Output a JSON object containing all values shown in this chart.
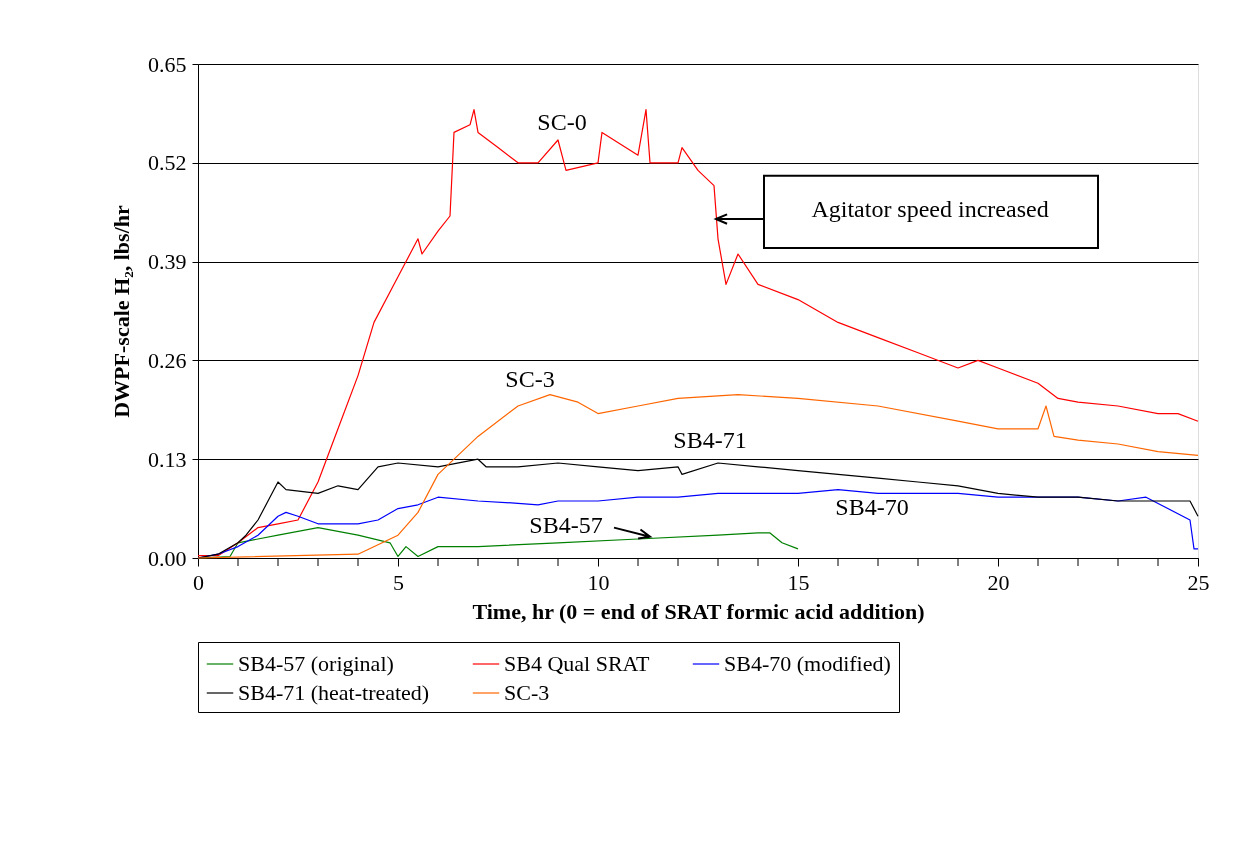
{
  "chart_data": {
    "type": "line",
    "xlabel": "Time, hr (0 = end of SRAT formic acid addition)",
    "ylabel": "DWPF-scale H₂, lbs/hr",
    "xlim": [
      0,
      25
    ],
    "ylim": [
      0,
      0.65
    ],
    "xticks": [
      0,
      {
        "value": 1,
        "label": null
      },
      {
        "value": 2,
        "label": null
      },
      {
        "value": 3,
        "label": null
      },
      {
        "value": 4,
        "label": null
      },
      5,
      {
        "value": 6,
        "label": null
      },
      {
        "value": 7,
        "label": null
      },
      {
        "value": 8,
        "label": null
      },
      {
        "value": 9,
        "label": null
      },
      10,
      {
        "value": 11,
        "label": null
      },
      {
        "value": 12,
        "label": null
      },
      {
        "value": 13,
        "label": null
      },
      {
        "value": 14,
        "label": null
      },
      15,
      {
        "value": 16,
        "label": null
      },
      {
        "value": 17,
        "label": null
      },
      {
        "value": 18,
        "label": null
      },
      {
        "value": 19,
        "label": null
      },
      20,
      {
        "value": 21,
        "label": null
      },
      {
        "value": 22,
        "label": null
      },
      {
        "value": 23,
        "label": null
      },
      {
        "value": 24,
        "label": null
      },
      25
    ],
    "yticks": [
      {
        "value": 0,
        "label": "0.00"
      },
      {
        "value": 0.13,
        "label": "0.13"
      },
      {
        "value": 0.26,
        "label": "0.26"
      },
      {
        "value": 0.39,
        "label": "0.39"
      },
      {
        "value": 0.52,
        "label": "0.52"
      },
      {
        "value": 0.65,
        "label": "0.65"
      }
    ],
    "grid": "y",
    "legend": "bottom",
    "marker": "none",
    "line_style": "solid",
    "series": [
      {
        "name": "SB4-57 (original)",
        "color": "#008000",
        "x": [
          0,
          0.8,
          1,
          1.5,
          2,
          3,
          4,
          4.8,
          5,
          5.2,
          5.5,
          6,
          7,
          9,
          11,
          13,
          14,
          14.3,
          14.6,
          15
        ],
        "values": [
          0,
          0.002,
          0.02,
          0.025,
          0.03,
          0.04,
          0.03,
          0.02,
          0.002,
          0.015,
          0.002,
          0.015,
          0.015,
          0.02,
          0.025,
          0.03,
          0.033,
          0.033,
          0.02,
          0.012
        ]
      },
      {
        "name": "SB4 Qual SRAT",
        "color": "#ff0000",
        "x": [
          0,
          0.5,
          1,
          1.5,
          2,
          2.5,
          3,
          3.5,
          4,
          4.4,
          5,
          5.5,
          5.6,
          6,
          6.3,
          6.4,
          6.8,
          6.9,
          7,
          7.5,
          8,
          8.5,
          9,
          9.2,
          10,
          10.1,
          11,
          11.2,
          11.3,
          12,
          12.1,
          12.5,
          12.9,
          13,
          13.2,
          13.5,
          14,
          15,
          16,
          17,
          18,
          19,
          19.5,
          20,
          21,
          21.5,
          22,
          23,
          24,
          24.5,
          25
        ],
        "values": [
          0.003,
          0.003,
          0.02,
          0.04,
          0.045,
          0.05,
          0.1,
          0.17,
          0.24,
          0.31,
          0.37,
          0.42,
          0.4,
          0.43,
          0.45,
          0.56,
          0.57,
          0.59,
          0.56,
          0.54,
          0.52,
          0.52,
          0.55,
          0.51,
          0.52,
          0.56,
          0.53,
          0.59,
          0.52,
          0.52,
          0.54,
          0.51,
          0.49,
          0.42,
          0.36,
          0.4,
          0.36,
          0.34,
          0.31,
          0.29,
          0.27,
          0.25,
          0.26,
          0.25,
          0.23,
          0.21,
          0.205,
          0.2,
          0.19,
          0.19,
          0.18
        ]
      },
      {
        "name": "SB4-70 (modified)",
        "color": "#0000ff",
        "x": [
          0,
          0.5,
          1,
          1.5,
          2,
          2.2,
          2.5,
          3,
          4,
          4.5,
          5,
          5.5,
          6,
          7,
          8,
          8.5,
          9,
          10,
          11,
          12,
          13,
          14,
          15,
          16,
          17,
          18,
          19,
          20,
          21,
          22,
          23,
          23.7,
          24.8,
          24.9,
          25
        ],
        "values": [
          0,
          0.005,
          0.015,
          0.03,
          0.055,
          0.06,
          0.055,
          0.045,
          0.045,
          0.05,
          0.065,
          0.07,
          0.08,
          0.075,
          0.072,
          0.07,
          0.075,
          0.075,
          0.08,
          0.08,
          0.085,
          0.085,
          0.085,
          0.09,
          0.085,
          0.085,
          0.085,
          0.08,
          0.08,
          0.08,
          0.075,
          0.08,
          0.05,
          0.012,
          0.012
        ]
      },
      {
        "name": "SB4-71 (heat-treated)",
        "color": "#000000",
        "x": [
          0,
          0.5,
          1,
          1.2,
          1.5,
          2,
          2.2,
          3,
          3.5,
          4,
          4.5,
          5,
          6,
          7,
          7.2,
          8,
          9,
          10,
          11,
          12,
          12.1,
          13,
          14,
          15,
          16,
          17,
          18,
          19,
          20,
          21,
          22,
          23,
          24,
          24.8,
          25
        ],
        "values": [
          0,
          0.005,
          0.02,
          0.03,
          0.05,
          0.1,
          0.09,
          0.085,
          0.095,
          0.09,
          0.12,
          0.125,
          0.12,
          0.13,
          0.12,
          0.12,
          0.125,
          0.12,
          0.115,
          0.12,
          0.11,
          0.125,
          0.12,
          0.115,
          0.11,
          0.105,
          0.1,
          0.095,
          0.085,
          0.08,
          0.08,
          0.075,
          0.075,
          0.075,
          0.055
        ]
      },
      {
        "name": "SC-3",
        "color": "#ff6600",
        "x": [
          0,
          4,
          5,
          5.5,
          6,
          7,
          8,
          8.8,
          9.5,
          10,
          11,
          12,
          13.5,
          15,
          17,
          19,
          20,
          21,
          21.2,
          21.4,
          22,
          23,
          24,
          25
        ],
        "values": [
          0,
          0.005,
          0.03,
          0.06,
          0.11,
          0.16,
          0.2,
          0.215,
          0.205,
          0.19,
          0.2,
          0.21,
          0.215,
          0.21,
          0.2,
          0.18,
          0.17,
          0.17,
          0.2,
          0.16,
          0.155,
          0.15,
          0.14,
          0.135
        ]
      }
    ],
    "annotations": [
      "SC-0",
      "SC-3",
      "SB4-71",
      {
        "text": "SB4-57",
        "x": 11.3,
        "y": 0.028
      },
      "SB4-70",
      "Agitator speed increased"
    ]
  }
}
